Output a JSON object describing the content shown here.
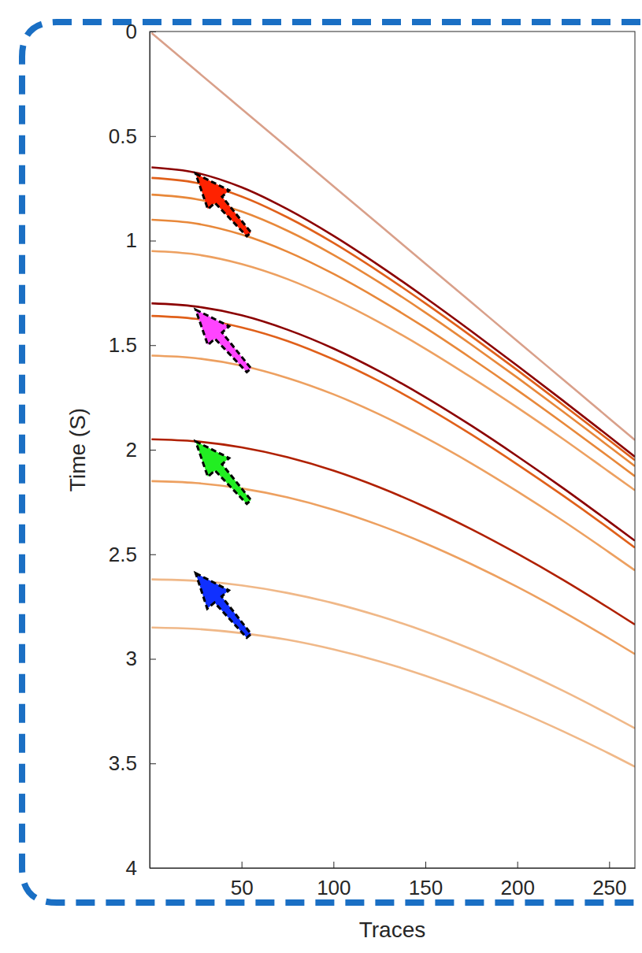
{
  "chart_data": {
    "type": "line",
    "x_label": "Traces",
    "y_label": "Time (S)",
    "xlim": [
      0,
      264
    ],
    "ylim": [
      0,
      4
    ],
    "xticks": [
      50,
      100,
      150,
      200,
      250
    ],
    "yticks": [
      0,
      0.5,
      1,
      1.5,
      2,
      2.5,
      3,
      3.5,
      4
    ],
    "grid": false,
    "x": [
      1,
      25,
      50,
      75,
      100,
      125,
      150,
      175,
      200,
      225,
      250,
      264
    ],
    "series": [
      {
        "color": "#d9a08a",
        "values": [
          0.007,
          0.185,
          0.37,
          0.555,
          0.74,
          0.925,
          1.11,
          1.295,
          1.48,
          1.665,
          1.85,
          1.954
        ]
      },
      {
        "color": "#8b0000",
        "values": [
          0.65,
          0.675,
          0.745,
          0.85,
          0.977,
          1.12,
          1.273,
          1.433,
          1.598,
          1.766,
          1.937,
          2.034
        ]
      },
      {
        "color": "#e0601a",
        "values": [
          0.7,
          0.723,
          0.789,
          0.889,
          1.011,
          1.15,
          1.3,
          1.457,
          1.619,
          1.786,
          1.955,
          2.05
        ]
      },
      {
        "color": "#e8883a",
        "values": [
          0.78,
          0.801,
          0.861,
          0.953,
          1.068,
          1.2,
          1.344,
          1.497,
          1.655,
          1.818,
          1.985,
          2.079
        ]
      },
      {
        "color": "#e8883a",
        "values": [
          0.9,
          0.918,
          0.971,
          1.053,
          1.159,
          1.282,
          1.417,
          1.563,
          1.715,
          1.873,
          2.035,
          2.127
        ]
      },
      {
        "color": "#eda060",
        "values": [
          1.05,
          1.066,
          1.112,
          1.184,
          1.279,
          1.391,
          1.517,
          1.654,
          1.798,
          1.949,
          2.106,
          2.194
        ]
      },
      {
        "color": "#8b0000",
        "values": [
          1.3,
          1.315,
          1.357,
          1.426,
          1.516,
          1.625,
          1.749,
          1.885,
          2.031,
          2.184,
          2.344,
          2.435
        ]
      },
      {
        "color": "#e0601a",
        "values": [
          1.36,
          1.374,
          1.415,
          1.48,
          1.568,
          1.673,
          1.794,
          1.927,
          2.07,
          2.22,
          2.377,
          2.468
        ]
      },
      {
        "color": "#eda060",
        "values": [
          1.55,
          1.562,
          1.598,
          1.657,
          1.735,
          1.831,
          1.942,
          2.065,
          2.199,
          2.341,
          2.491,
          2.577
        ]
      },
      {
        "color": "#b02000",
        "values": [
          1.95,
          1.96,
          1.989,
          2.036,
          2.1,
          2.18,
          2.274,
          2.38,
          2.497,
          2.623,
          2.758,
          2.836
        ]
      },
      {
        "color": "#eda060",
        "values": [
          2.15,
          2.159,
          2.185,
          2.228,
          2.287,
          2.361,
          2.448,
          2.547,
          2.656,
          2.775,
          2.903,
          2.977
        ]
      },
      {
        "color": "#f0b888",
        "values": [
          2.62,
          2.627,
          2.649,
          2.685,
          2.734,
          2.796,
          2.869,
          2.954,
          3.049,
          3.153,
          3.266,
          3.332
        ]
      },
      {
        "color": "#f0b888",
        "values": [
          2.85,
          2.857,
          2.877,
          2.909,
          2.955,
          3.012,
          3.081,
          3.16,
          3.249,
          3.347,
          3.453,
          3.516
        ]
      }
    ],
    "arrows": [
      {
        "x": 25,
        "y": 0.68,
        "x_end": 54,
        "y_end": 0.97,
        "color": "#ff2200"
      },
      {
        "x": 25,
        "y": 1.33,
        "x_end": 54,
        "y_end": 1.62,
        "color": "#ff44ff"
      },
      {
        "x": 25,
        "y": 1.96,
        "x_end": 54,
        "y_end": 2.25,
        "color": "#22ee22"
      },
      {
        "x": 25,
        "y": 2.59,
        "x_end": 54,
        "y_end": 2.89,
        "color": "#1030ff"
      }
    ]
  }
}
